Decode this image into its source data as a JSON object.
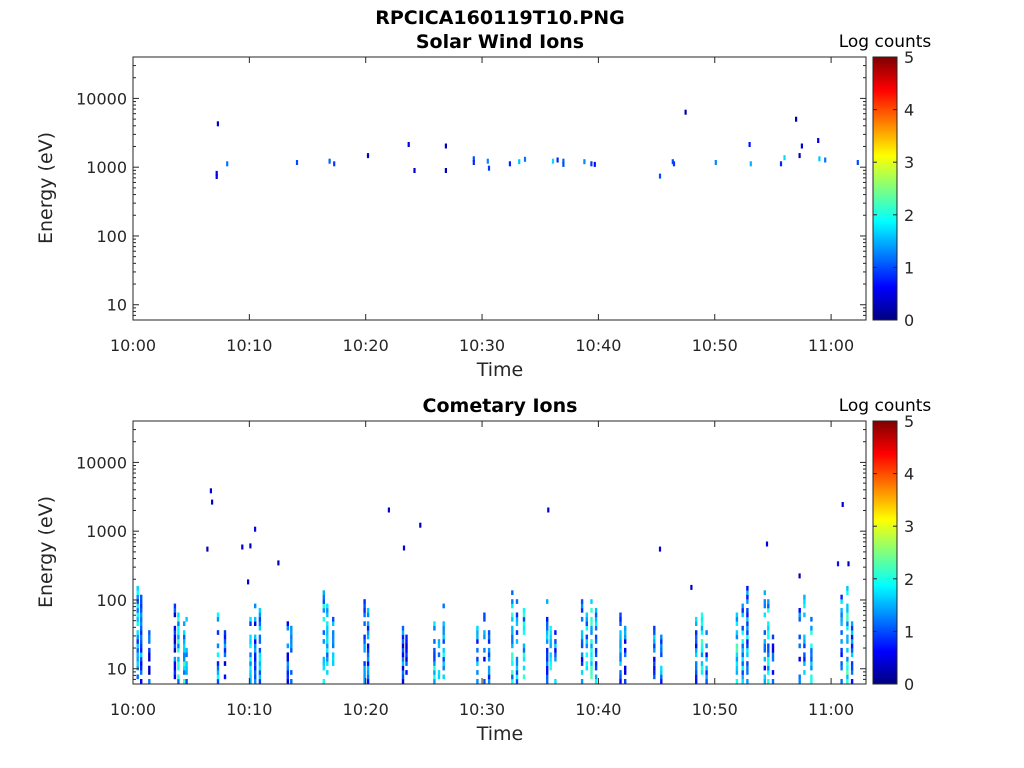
{
  "figure_title": "RPCICA160119T10.PNG",
  "colormap": [
    "#00007f",
    "#0000ff",
    "#007fff",
    "#00ffff",
    "#7fff7f",
    "#ffff00",
    "#ff7f00",
    "#ff0000",
    "#7f0000"
  ],
  "chart_data": [
    {
      "type": "heatmap",
      "title": "Solar Wind Ions",
      "xlabel": "Time",
      "ylabel": "Energy (eV)",
      "yscale": "log",
      "x_ticks": [
        "10:00",
        "10:10",
        "10:20",
        "10:30",
        "10:40",
        "10:50",
        "11:00"
      ],
      "xlim_minutes": [
        0,
        63
      ],
      "y_ticks": [
        "10",
        "100",
        "1000",
        "10000"
      ],
      "ylim": [
        6,
        40000
      ],
      "colorbar": {
        "label": "Log counts",
        "ticks": [
          "0",
          "1",
          "2",
          "3",
          "4",
          "5"
        ],
        "range": [
          0,
          5
        ]
      },
      "points": [
        [
          7.2,
          4200,
          0.4
        ],
        [
          7.1,
          800,
          0.6
        ],
        [
          7.1,
          720,
          0.5
        ],
        [
          8.0,
          1100,
          1.2
        ],
        [
          14.0,
          1150,
          1.0
        ],
        [
          16.8,
          1200,
          1.1
        ],
        [
          17.2,
          1100,
          0.9
        ],
        [
          20.1,
          1450,
          0.3
        ],
        [
          23.6,
          2100,
          0.5
        ],
        [
          24.1,
          880,
          0.4
        ],
        [
          26.8,
          2000,
          0.3
        ],
        [
          26.8,
          880,
          0.3
        ],
        [
          29.2,
          1300,
          1.0
        ],
        [
          29.2,
          1150,
          0.8
        ],
        [
          30.4,
          1200,
          1.3
        ],
        [
          30.5,
          950,
          0.9
        ],
        [
          32.3,
          1100,
          0.8
        ],
        [
          33.1,
          1180,
          1.6
        ],
        [
          33.6,
          1280,
          1.2
        ],
        [
          36.0,
          1200,
          1.7
        ],
        [
          36.4,
          1250,
          0.8
        ],
        [
          36.9,
          1200,
          1.1
        ],
        [
          36.9,
          1080,
          1.0
        ],
        [
          38.7,
          1180,
          1.3
        ],
        [
          39.3,
          1100,
          0.9
        ],
        [
          39.6,
          1080,
          0.7
        ],
        [
          45.2,
          730,
          1.0
        ],
        [
          46.3,
          1180,
          1.0
        ],
        [
          46.4,
          1100,
          0.9
        ],
        [
          47.4,
          6200,
          0.2
        ],
        [
          50.0,
          1150,
          1.3
        ],
        [
          52.9,
          2100,
          0.7
        ],
        [
          53.0,
          1100,
          1.5
        ],
        [
          55.6,
          1100,
          0.8
        ],
        [
          55.9,
          1350,
          1.7
        ],
        [
          56.9,
          4900,
          0.2
        ],
        [
          57.2,
          1450,
          0.3
        ],
        [
          57.4,
          2000,
          0.4
        ],
        [
          58.8,
          2400,
          0.5
        ],
        [
          58.9,
          1300,
          1.6
        ],
        [
          59.4,
          1250,
          1.2
        ],
        [
          62.2,
          1150,
          1.0
        ]
      ]
    },
    {
      "type": "heatmap",
      "title": "Cometary Ions",
      "xlabel": "Time",
      "ylabel": "Energy (eV)",
      "yscale": "log",
      "x_ticks": [
        "10:00",
        "10:10",
        "10:20",
        "10:30",
        "10:40",
        "10:50",
        "11:00"
      ],
      "xlim_minutes": [
        0,
        63
      ],
      "y_ticks": [
        "10",
        "100",
        "1000",
        "10000"
      ],
      "ylim": [
        6,
        40000
      ],
      "colorbar": {
        "label": "Log counts",
        "ticks": [
          "0",
          "1",
          "2",
          "3",
          "4",
          "5"
        ],
        "range": [
          0,
          5
        ]
      },
      "isolated_points": [
        [
          6.6,
          3800,
          0.4
        ],
        [
          6.7,
          2600,
          0.4
        ],
        [
          6.3,
          540,
          0.3
        ],
        [
          9.3,
          580,
          0.4
        ],
        [
          10.4,
          1050,
          0.6
        ],
        [
          10.0,
          600,
          0.3
        ],
        [
          12.4,
          340,
          0.3
        ],
        [
          9.8,
          180,
          0.4
        ],
        [
          21.9,
          2000,
          0.4
        ],
        [
          23.2,
          560,
          0.5
        ],
        [
          24.6,
          1200,
          0.3
        ],
        [
          35.6,
          2000,
          0.4
        ],
        [
          45.2,
          540,
          0.4
        ],
        [
          47.9,
          150,
          0.3
        ],
        [
          54.4,
          640,
          0.5
        ],
        [
          57.2,
          220,
          0.3
        ],
        [
          60.9,
          2400,
          0.4
        ],
        [
          60.5,
          330,
          0.7
        ],
        [
          61.4,
          330,
          0.3
        ]
      ],
      "columns": [
        [
          0.3,
          160,
          1.5
        ],
        [
          0.6,
          110,
          1.3
        ],
        [
          1.3,
          60,
          0.9
        ],
        [
          3.5,
          110,
          1.0
        ],
        [
          3.8,
          60,
          1.7
        ],
        [
          4.3,
          50,
          1.8
        ],
        [
          4.5,
          80,
          1.2
        ],
        [
          7.2,
          60,
          1.4
        ],
        [
          7.8,
          35,
          1.0
        ],
        [
          10.0,
          50,
          1.5
        ],
        [
          10.4,
          110,
          1.2
        ],
        [
          10.8,
          70,
          1.6
        ],
        [
          13.2,
          60,
          1.0
        ],
        [
          13.5,
          40,
          1.2
        ],
        [
          16.3,
          130,
          1.7
        ],
        [
          16.6,
          80,
          1.5
        ],
        [
          17.1,
          50,
          1.4
        ],
        [
          19.8,
          110,
          1.4
        ],
        [
          20.1,
          70,
          1.2
        ],
        [
          23.1,
          40,
          1.1
        ],
        [
          23.4,
          30,
          0.9
        ],
        [
          25.8,
          45,
          1.6
        ],
        [
          26.2,
          30,
          1.3
        ],
        [
          26.6,
          80,
          1.5
        ],
        [
          29.5,
          45,
          1.4
        ],
        [
          30.1,
          60,
          1.2
        ],
        [
          30.5,
          40,
          1.0
        ],
        [
          32.5,
          160,
          1.8
        ],
        [
          32.9,
          120,
          1.5
        ],
        [
          33.5,
          70,
          1.7
        ],
        [
          35.5,
          90,
          1.4
        ],
        [
          35.8,
          50,
          1.6
        ],
        [
          36.2,
          35,
          1.3
        ],
        [
          38.5,
          110,
          1.3
        ],
        [
          38.9,
          80,
          1.6
        ],
        [
          39.3,
          140,
          1.9
        ],
        [
          39.7,
          80,
          1.4
        ],
        [
          41.8,
          60,
          1.3
        ],
        [
          42.2,
          40,
          1.1
        ],
        [
          44.7,
          40,
          1.2
        ],
        [
          45.3,
          30,
          1.4
        ],
        [
          48.3,
          50,
          1.3
        ],
        [
          48.8,
          70,
          1.8
        ],
        [
          49.2,
          40,
          1.3
        ],
        [
          51.8,
          60,
          1.9
        ],
        [
          52.3,
          110,
          1.5
        ],
        [
          52.7,
          160,
          1.4
        ],
        [
          54.2,
          160,
          1.3
        ],
        [
          54.5,
          90,
          1.6
        ],
        [
          54.9,
          50,
          1.1
        ],
        [
          57.2,
          80,
          1.2
        ],
        [
          57.6,
          110,
          1.4
        ],
        [
          58.2,
          60,
          1.7
        ],
        [
          60.8,
          110,
          1.3
        ],
        [
          61.3,
          140,
          1.9
        ],
        [
          61.7,
          50,
          1.2
        ]
      ]
    }
  ]
}
